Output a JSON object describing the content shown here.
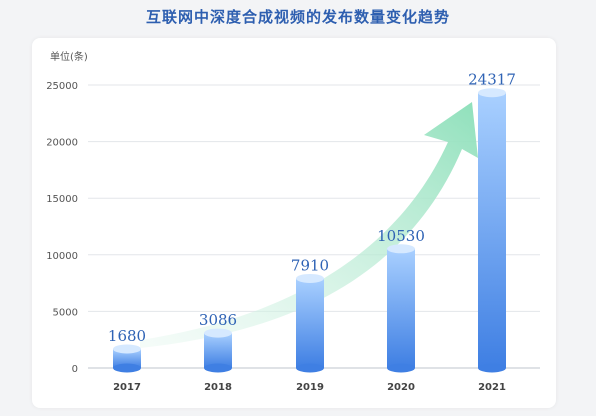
{
  "title": "互联网中深度合成视频的发布数量变化趋势",
  "chart_data": {
    "type": "bar",
    "title": "互联网中深度合成视频的发布数量变化趋势",
    "ylabel": "单位(条)",
    "xlabel": "",
    "categories": [
      "2017",
      "2018",
      "2019",
      "2020",
      "2021"
    ],
    "values": [
      1680,
      3086,
      7910,
      10530,
      24317
    ],
    "ylim": [
      0,
      25000
    ],
    "yticks": [
      0,
      5000,
      10000,
      15000,
      20000,
      25000
    ],
    "grid": true,
    "trend_arrow": true,
    "colors": {
      "bar_top": "#a9d0ff",
      "bar_bottom": "#3f7fe3",
      "arrow": "#9fe6c4",
      "label": "#2f63b5"
    }
  }
}
